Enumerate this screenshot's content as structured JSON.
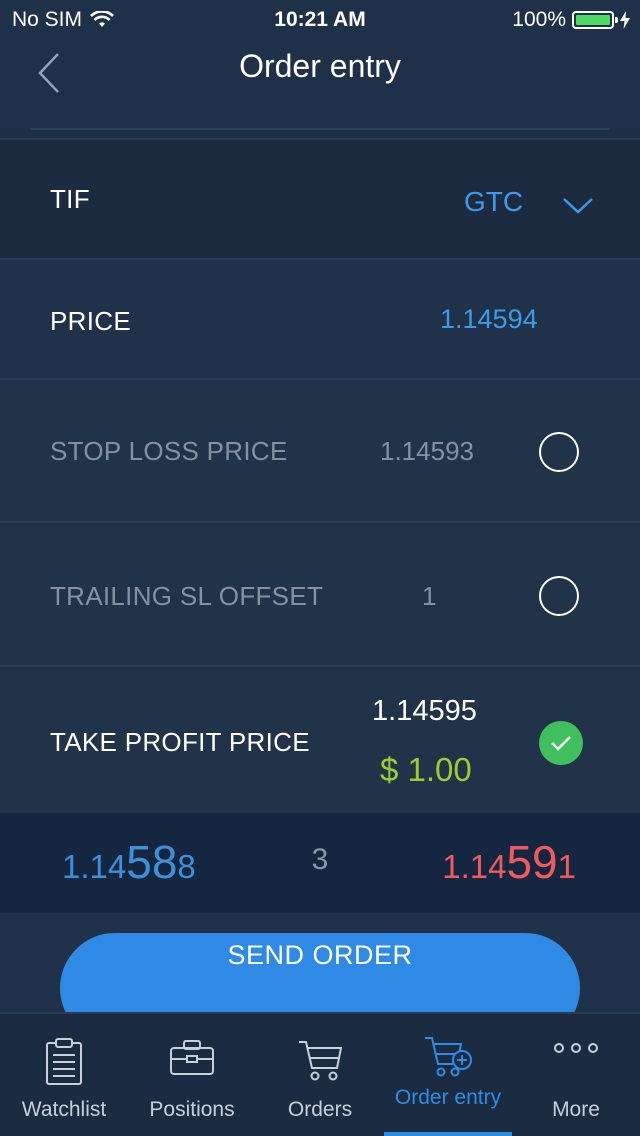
{
  "status_bar": {
    "carrier": "No SIM",
    "time": "10:21 AM",
    "battery": "100%"
  },
  "nav": {
    "title": "Order entry"
  },
  "form": {
    "tif": {
      "label": "TIF",
      "value": "GTC"
    },
    "price": {
      "label": "PRICE",
      "value": "1.14594"
    },
    "stop_loss": {
      "label": "STOP LOSS PRICE",
      "value": "1.14593",
      "checked": false
    },
    "trailing": {
      "label": "TRAILING SL OFFSET",
      "value": "1",
      "checked": false
    },
    "take_profit": {
      "label": "TAKE PROFIT PRICE",
      "value": "1.14595",
      "profit": "$ 1.00",
      "checked": true
    }
  },
  "quote": {
    "bid_prefix": "1.14",
    "bid_big": "58",
    "bid_suffix": "8",
    "spread": "3",
    "ask_prefix": "1.14",
    "ask_big": "59",
    "ask_suffix": "1"
  },
  "send_button": "SEND ORDER",
  "tabs": [
    {
      "label": "Watchlist"
    },
    {
      "label": "Positions"
    },
    {
      "label": "Orders"
    },
    {
      "label": "Order entry",
      "active": true
    },
    {
      "label": "More"
    }
  ],
  "colors": {
    "accent": "#2f8ae6",
    "bid": "#3d8fd9",
    "ask": "#f05a5f",
    "profit": "#9acd32",
    "check": "#3fbf5e"
  }
}
